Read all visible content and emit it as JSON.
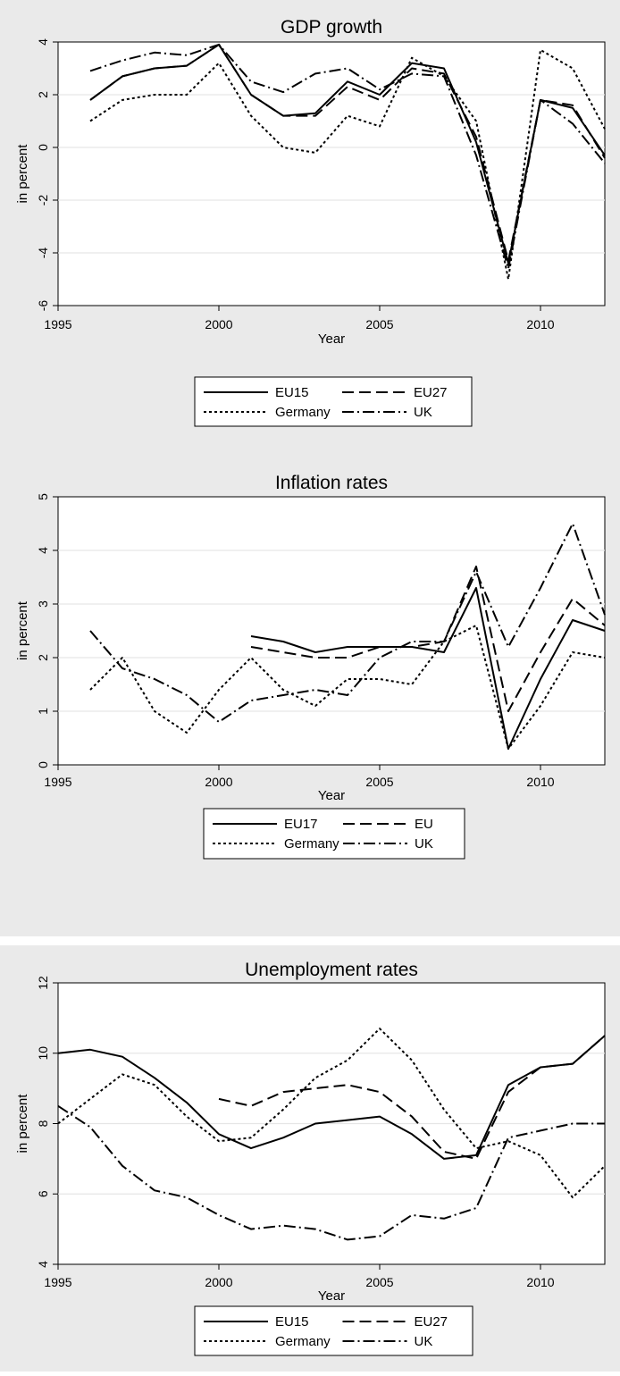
{
  "chart_data": [
    {
      "type": "line",
      "title": "GDP growth",
      "xlabel": "Year",
      "ylabel": "in percent",
      "xlim": [
        1995,
        2012
      ],
      "ylim": [
        -6,
        4
      ],
      "xticks": [
        1995,
        2000,
        2005,
        2010
      ],
      "yticks": [
        -6,
        -4,
        -2,
        0,
        2,
        4
      ],
      "grid": "horizontal",
      "legend_position": "bottom",
      "x": [
        1996,
        1997,
        1998,
        1999,
        2000,
        2001,
        2002,
        2003,
        2004,
        2005,
        2006,
        2007,
        2008,
        2009,
        2010,
        2011,
        2012
      ],
      "series": [
        {
          "name": "EU15",
          "style": "solid",
          "values": [
            1.8,
            2.7,
            3.0,
            3.1,
            3.9,
            2.0,
            1.2,
            1.3,
            2.5,
            2.0,
            3.2,
            3.0,
            0.2,
            -4.4,
            1.8,
            1.5,
            -0.3
          ]
        },
        {
          "name": "EU27",
          "style": "dash",
          "values": [
            1.8,
            2.7,
            3.0,
            3.1,
            3.9,
            2.0,
            1.2,
            1.2,
            2.3,
            1.8,
            3.0,
            2.8,
            0.4,
            -4.3,
            1.8,
            1.6,
            -0.4
          ]
        },
        {
          "name": "Germany",
          "style": "dot",
          "values": [
            1.0,
            1.8,
            2.0,
            2.0,
            3.2,
            1.2,
            0.0,
            -0.2,
            1.2,
            0.8,
            3.4,
            2.7,
            1.0,
            -5.0,
            3.7,
            3.0,
            0.7
          ]
        },
        {
          "name": "UK",
          "style": "dashdot",
          "values": [
            2.9,
            3.3,
            3.6,
            3.5,
            3.9,
            2.5,
            2.1,
            2.8,
            3.0,
            2.2,
            2.8,
            2.7,
            -0.3,
            -4.6,
            1.8,
            0.9,
            -0.6
          ]
        }
      ]
    },
    {
      "type": "line",
      "title": "Inflation rates",
      "xlabel": "Year",
      "ylabel": "in percent",
      "xlim": [
        1995,
        2012
      ],
      "ylim": [
        0,
        5
      ],
      "xticks": [
        1995,
        2000,
        2005,
        2010
      ],
      "yticks": [
        0,
        1,
        2,
        3,
        4,
        5
      ],
      "grid": "horizontal",
      "legend_position": "bottom",
      "x": [
        1996,
        1997,
        1998,
        1999,
        2000,
        2001,
        2002,
        2003,
        2004,
        2005,
        2006,
        2007,
        2008,
        2009,
        2010,
        2011,
        2012
      ],
      "series": [
        {
          "name": "EU17",
          "style": "solid",
          "values": [
            null,
            null,
            null,
            null,
            null,
            2.4,
            2.3,
            2.1,
            2.2,
            2.2,
            2.2,
            2.1,
            3.3,
            0.3,
            1.6,
            2.7,
            2.5
          ]
        },
        {
          "name": "EU",
          "style": "dash",
          "values": [
            null,
            null,
            null,
            null,
            null,
            2.2,
            2.1,
            2.0,
            2.0,
            2.2,
            2.2,
            2.3,
            3.7,
            1.0,
            2.1,
            3.1,
            2.6
          ]
        },
        {
          "name": "Germany",
          "style": "dot",
          "values": [
            1.4,
            2.0,
            1.0,
            0.6,
            1.4,
            2.0,
            1.4,
            1.1,
            1.6,
            1.6,
            1.5,
            2.3,
            2.6,
            0.3,
            1.1,
            2.1,
            2.0
          ]
        },
        {
          "name": "UK",
          "style": "dashdot",
          "values": [
            2.5,
            1.8,
            1.6,
            1.3,
            0.8,
            1.2,
            1.3,
            1.4,
            1.3,
            2.0,
            2.3,
            2.3,
            3.6,
            2.2,
            3.3,
            4.5,
            2.8
          ]
        }
      ]
    },
    {
      "type": "line",
      "title": "Unemployment rates",
      "xlabel": "Year",
      "ylabel": "in percent",
      "xlim": [
        1995,
        2012
      ],
      "ylim": [
        4,
        12
      ],
      "xticks": [
        1995,
        2000,
        2005,
        2010
      ],
      "yticks": [
        4,
        6,
        8,
        10,
        12
      ],
      "grid": "horizontal",
      "legend_position": "bottom",
      "x": [
        1995,
        1996,
        1997,
        1998,
        1999,
        2000,
        2001,
        2002,
        2003,
        2004,
        2005,
        2006,
        2007,
        2008,
        2009,
        2010,
        2011,
        2012
      ],
      "series": [
        {
          "name": "EU15",
          "style": "solid",
          "values": [
            10.0,
            10.1,
            9.9,
            9.3,
            8.6,
            7.7,
            7.3,
            7.6,
            8.0,
            8.1,
            8.2,
            7.7,
            7.0,
            7.1,
            9.1,
            9.6,
            9.7,
            10.5
          ]
        },
        {
          "name": "EU27",
          "style": "dash",
          "values": [
            null,
            null,
            null,
            null,
            null,
            8.7,
            8.5,
            8.9,
            9.0,
            9.1,
            8.9,
            8.2,
            7.2,
            7.0,
            8.9,
            9.6,
            9.7,
            10.5
          ]
        },
        {
          "name": "Germany",
          "style": "dot",
          "values": [
            8.0,
            8.7,
            9.4,
            9.1,
            8.2,
            7.5,
            7.6,
            8.4,
            9.3,
            9.8,
            10.7,
            9.8,
            8.4,
            7.3,
            7.5,
            7.1,
            5.9,
            6.8
          ]
        },
        {
          "name": "UK",
          "style": "dashdot",
          "values": [
            8.5,
            7.9,
            6.8,
            6.1,
            5.9,
            5.4,
            5.0,
            5.1,
            5.0,
            4.7,
            4.8,
            5.4,
            5.3,
            5.6,
            7.6,
            7.8,
            8.0,
            8.0
          ]
        }
      ]
    }
  ]
}
